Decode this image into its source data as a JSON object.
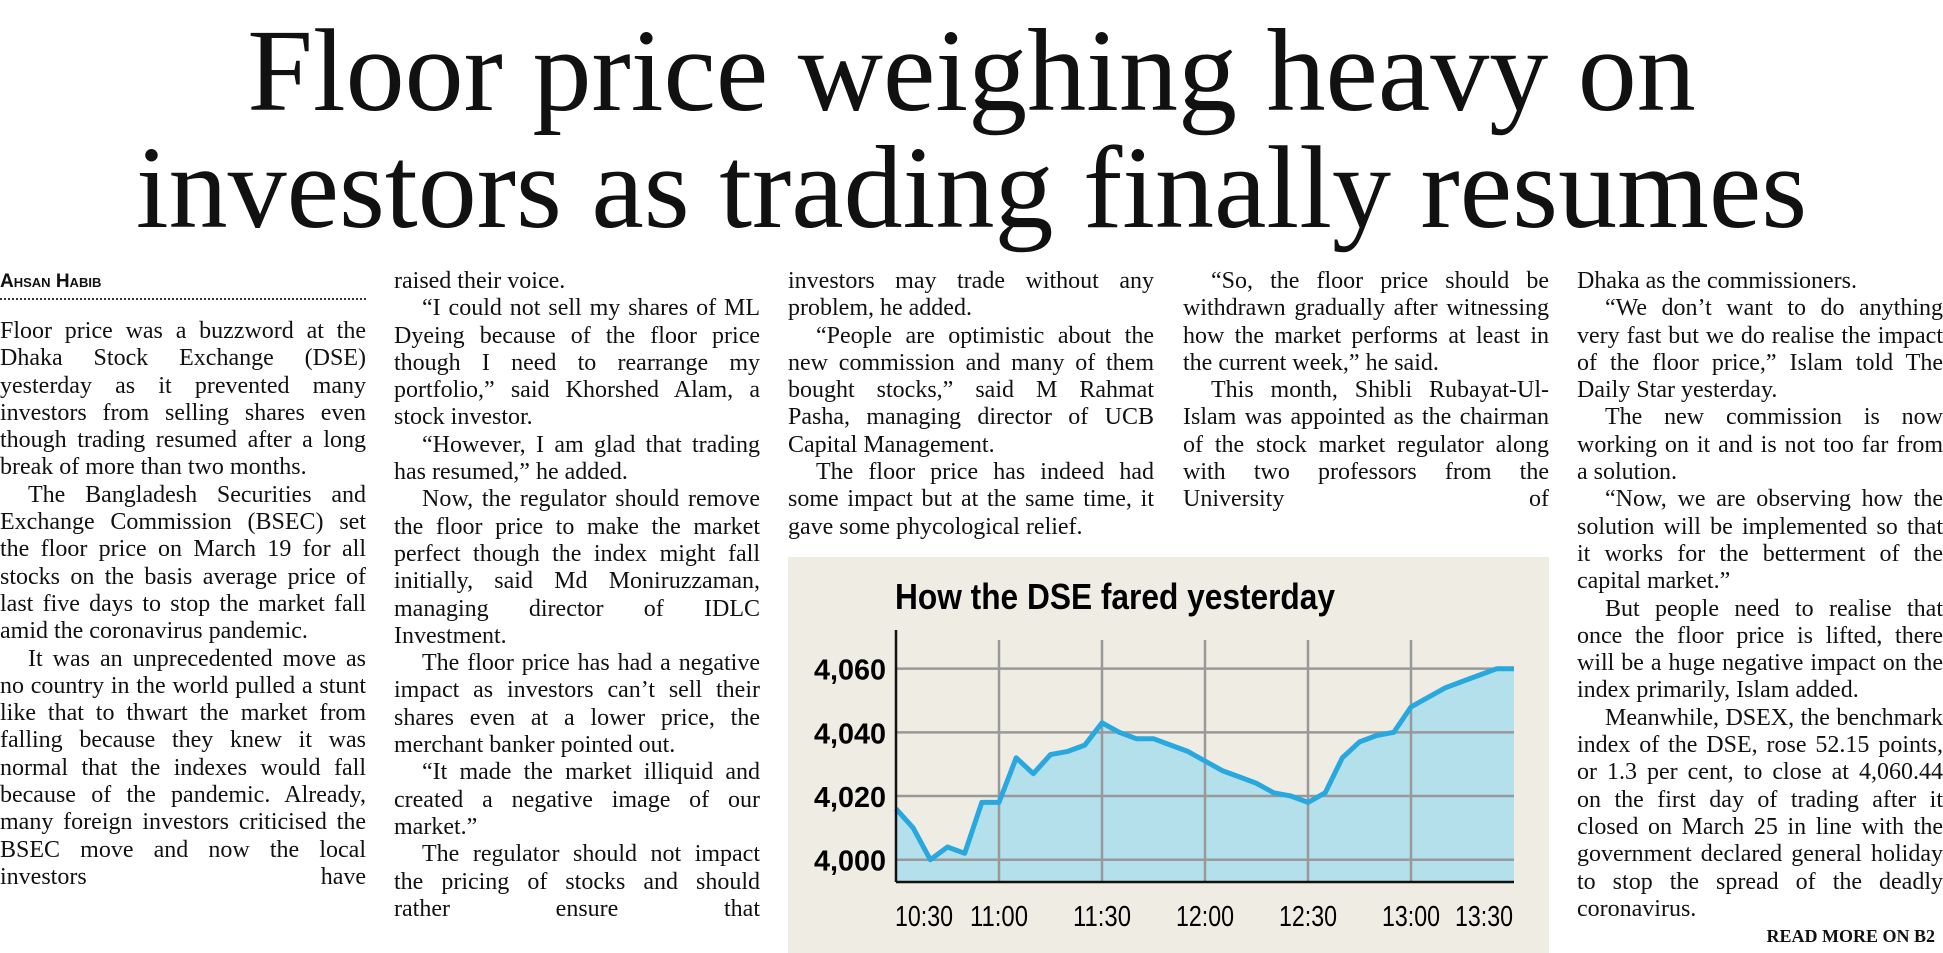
{
  "headline": [
    "Floor price weighing heavy on",
    "investors as trading finally resumes"
  ],
  "byline": "Ahsan Habib",
  "columns": [
    [
      "Floor price was a buzzword at the Dhaka Stock Exchange (DSE) yesterday as it prevented many investors from selling shares even though trading resumed after a long break of more than two months.",
      "The Bangladesh Securities and Exchange Commission (BSEC) set the floor price on March 19 for all stocks on the basis average price of last five days to stop the market fall amid the coronavirus pandemic.",
      "It was an unprecedented move as no country in the world pulled a stunt like that to thwart the market from falling because they knew it was normal that the indexes would fall because of the pandemic. Already, many foreign investors criticised the BSEC move and now the local investors have"
    ],
    [
      "raised their voice.",
      "“I could not sell my shares of ML Dyeing because of the floor price though I need to rearrange my portfolio,” said Khorshed Alam, a stock investor.",
      "“However, I am glad that trading has resumed,” he added.",
      "Now, the regulator should remove the floor price to make the market perfect though the index might fall initially, said Md Moniruzzaman, managing director of IDLC Investment.",
      "The floor price has had a negative impact as investors can’t sell their shares even at a lower price, the merchant banker pointed out.",
      "“It made the market illiquid and created a negative image of our market.”",
      "The regulator should not impact the pricing of stocks and should rather ensure that"
    ],
    [
      "investors may trade without any problem, he added.",
      "“People are optimistic about the new commission and many of them bought stocks,” said M Rahmat Pasha, managing director of UCB Capital Management.",
      "The floor price has indeed had some impact but at the same time, it gave some phycological relief."
    ],
    [
      "“So, the floor price should be withdrawn gradually after witnessing how the market performs at least in the current week,” he said.",
      "This month, Shibli Rubayat-Ul-Islam was appointed as the chairman of the stock market regulator along with two professors from the University of"
    ],
    [
      "Dhaka as the commissioners.",
      "“We don’t want to do anything very fast but we do realise the impact of the floor price,” Islam told The Daily Star yesterday.",
      "The new commission is now working on it and is not too far from a solution.",
      "“Now, we are observing how the solution will be implemented so that it works for the betterment of the capital market.”",
      "But people need to realise that once the floor price is lifted, there will be a huge negative impact on the index primarily, Islam added.",
      "Meanwhile, DSEX, the benchmark index of the DSE, rose 52.15 points, or 1.3 per cent, to close at 4,060.44 on the first day of trading after it closed on March 25 in line with the government declared general holiday to stop the spread of the deadly coronavirus."
    ]
  ],
  "jump": "READ MORE ON B2",
  "chart_data": {
    "type": "area",
    "title": "How the DSE fared yesterday",
    "x": [
      "10:30",
      "10:35",
      "10:40",
      "10:45",
      "10:50",
      "10:55",
      "11:00",
      "11:05",
      "11:10",
      "11:15",
      "11:20",
      "11:25",
      "11:30",
      "11:35",
      "11:40",
      "11:45",
      "11:50",
      "11:55",
      "12:00",
      "12:05",
      "12:10",
      "12:15",
      "12:20",
      "12:25",
      "12:30",
      "12:35",
      "12:40",
      "12:45",
      "12:50",
      "12:55",
      "13:00",
      "13:05",
      "13:10",
      "13:15",
      "13:20",
      "13:25",
      "13:30"
    ],
    "values": [
      4016,
      4010,
      4000,
      4004,
      4002,
      4018,
      4018,
      4032,
      4027,
      4033,
      4034,
      4036,
      4043,
      4040,
      4038,
      4038,
      4036,
      4034,
      4031,
      4028,
      4026,
      4024,
      4021,
      4020,
      4018,
      4021,
      4032,
      4037,
      4039,
      4040,
      4048,
      4051,
      4054,
      4056,
      4058,
      4060,
      4060
    ],
    "xticks": [
      "10:30",
      "11:00",
      "11:30",
      "12:00",
      "12:30",
      "13:00",
      "13:30"
    ],
    "ylim": [
      3993,
      4069
    ],
    "yticks": [
      {
        "value": 4000,
        "label": "4,000"
      },
      {
        "value": 4020,
        "label": "4,020"
      },
      {
        "value": 4040,
        "label": "4,040"
      },
      {
        "value": 4060,
        "label": "4,060"
      }
    ],
    "grid": true,
    "color": "#29a8e0",
    "fill": "#b3e0ea",
    "background": "#eeece3"
  }
}
